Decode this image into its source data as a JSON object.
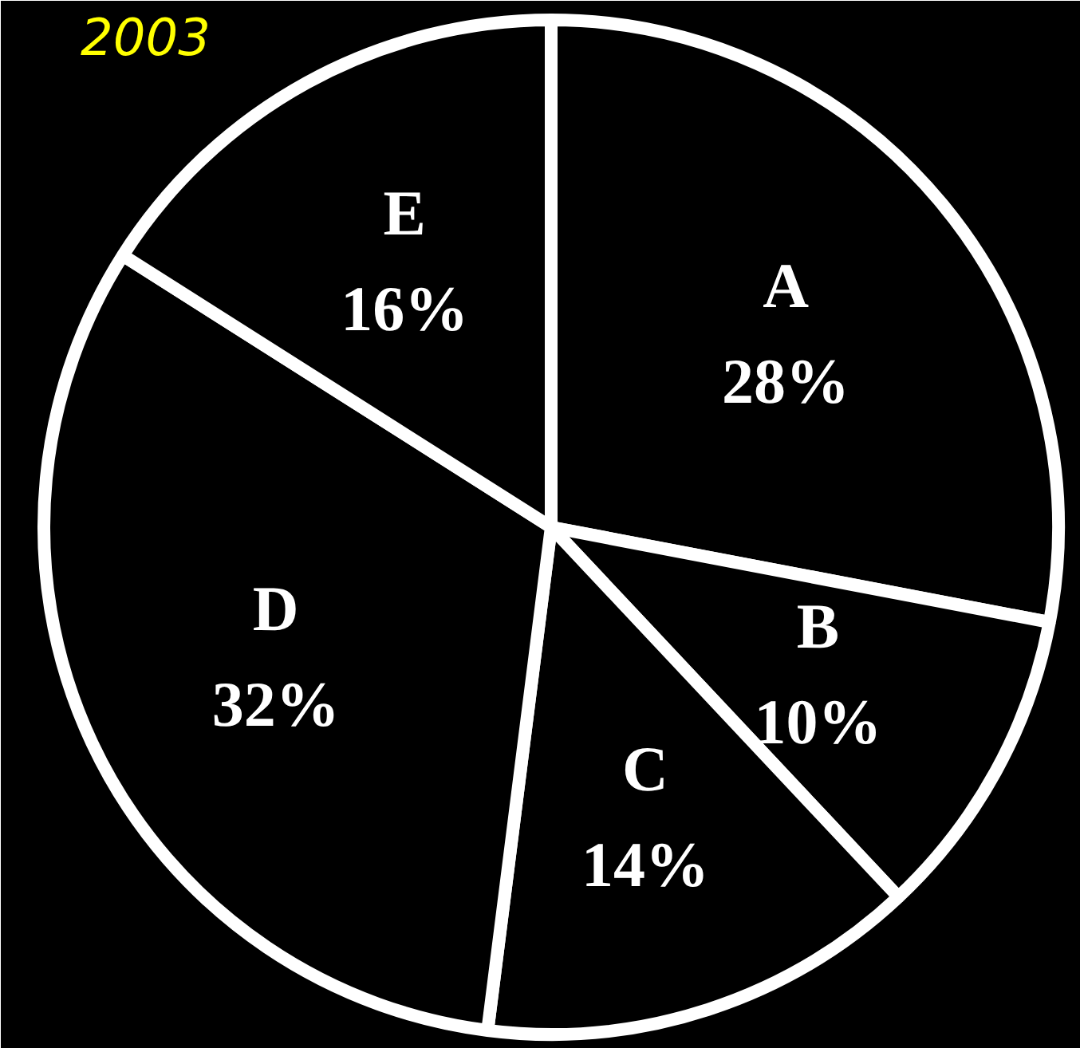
{
  "chart_data": {
    "type": "pie",
    "title": "2003",
    "categories": [
      "A",
      "B",
      "C",
      "D",
      "E"
    ],
    "values": [
      28,
      10,
      14,
      32,
      16
    ],
    "value_labels": [
      "28%",
      "10%",
      "14%",
      "32%",
      "16%"
    ],
    "colors": [
      "#000000",
      "#000000",
      "#000000",
      "#000000",
      "#000000"
    ]
  }
}
